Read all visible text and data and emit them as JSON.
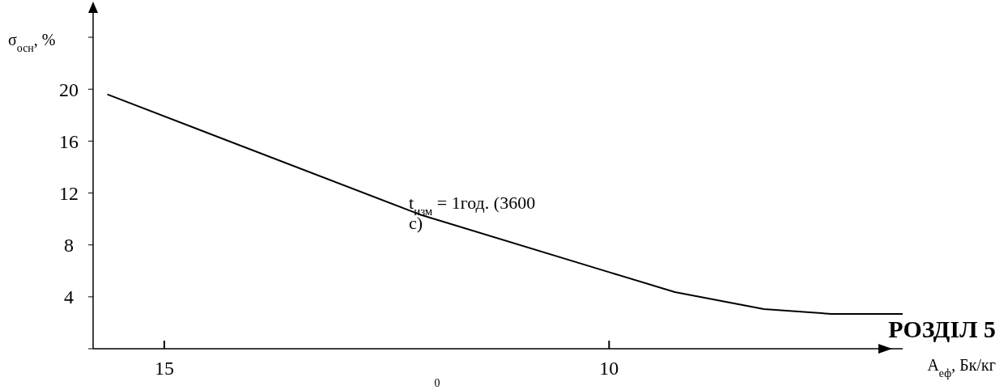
{
  "chart_data": {
    "type": "line",
    "x": [
      15.64,
      12.11,
      10.0,
      9.26,
      8.26,
      7.5,
      6.7
    ],
    "series": [
      {
        "color": "#000000",
        "values": [
          19.6,
          10.3,
          5.9,
          4.36,
          3.05,
          2.68,
          2.68
        ]
      }
    ],
    "xlim": [
      15.8,
      6.7
    ],
    "xticks": [
      15,
      10
    ],
    "ylim": [
      0,
      26
    ],
    "yticks": [
      {
        "value": 0,
        "label": null
      },
      4,
      8,
      12,
      16,
      20,
      {
        "value": 24,
        "label": null
      }
    ],
    "xlabel": "A$_{еф}$, Бк/кг",
    "ylabel": "σ$_{осн}$, %",
    "annotations": [
      "t$_{изм}$ = 1год. (3600 с)",
      "РОЗДІЛ 5",
      "0"
    ],
    "grid": false,
    "marker": "none",
    "line_style": "solid"
  }
}
